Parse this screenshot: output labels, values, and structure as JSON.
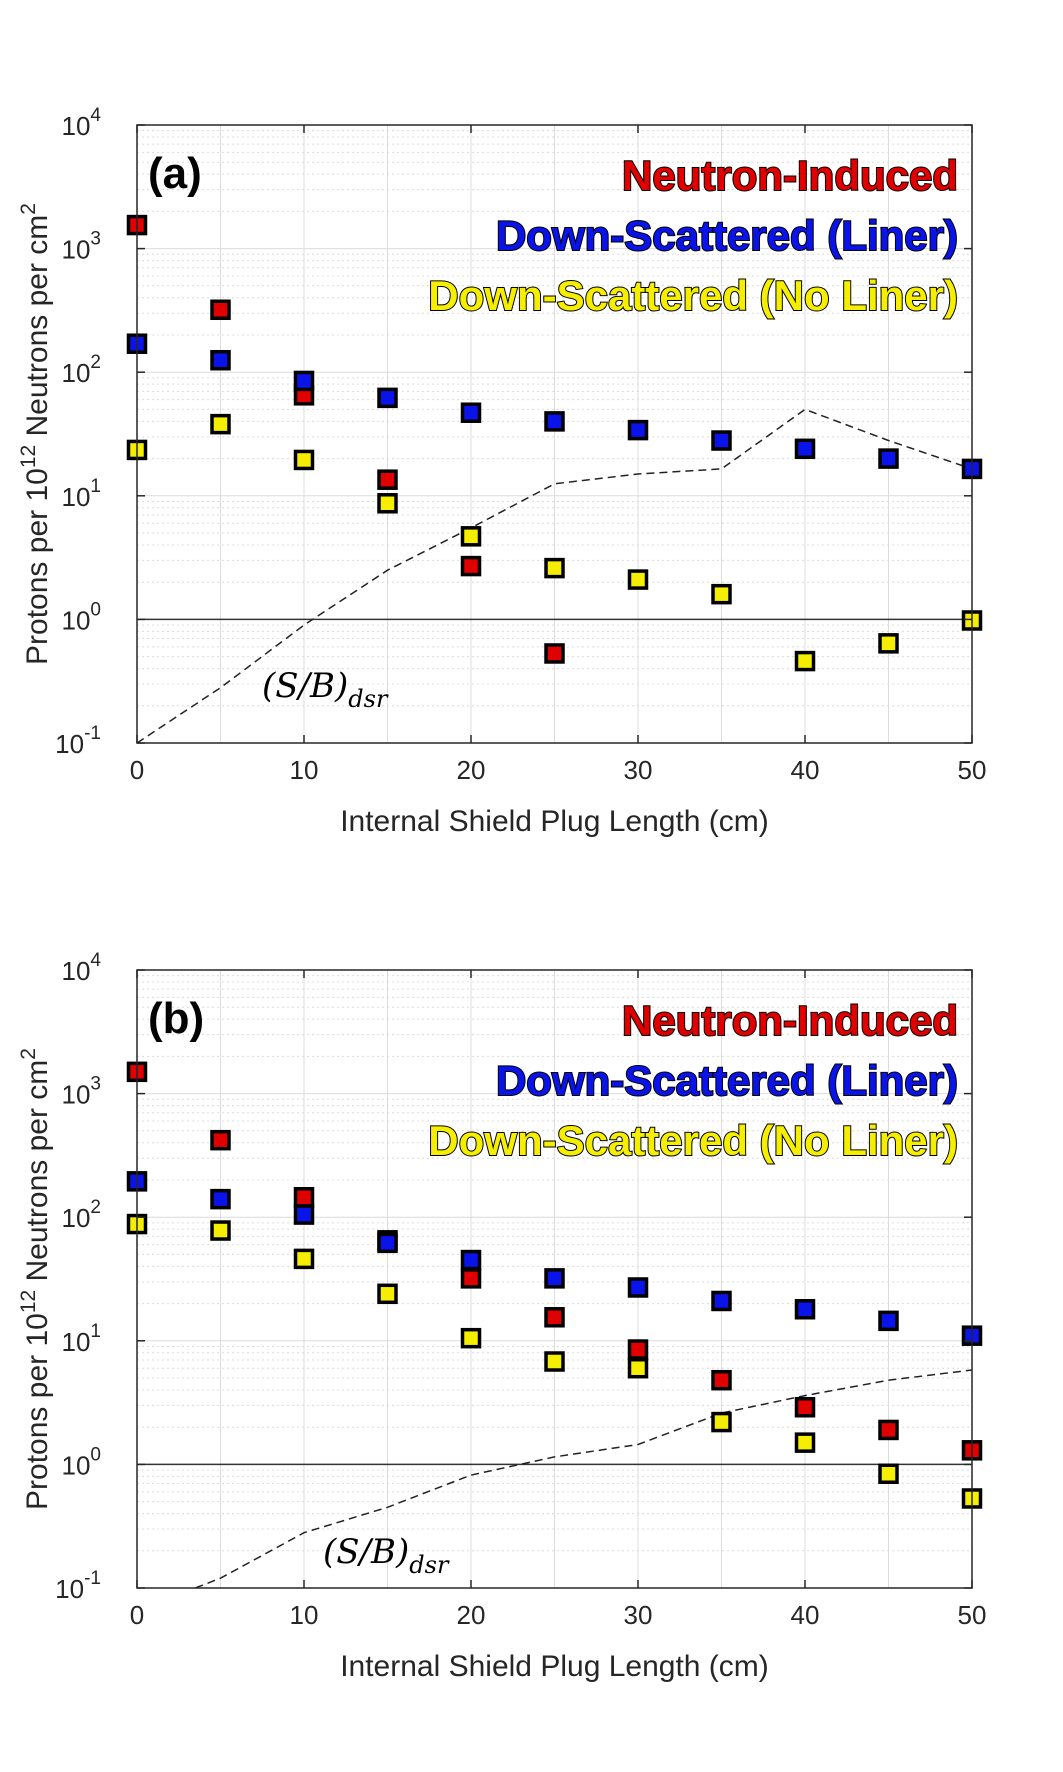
{
  "colors": {
    "neutron_induced": "#e00000",
    "down_scattered_liner": "#0a14e8",
    "down_scattered_no_liner": "#f5ee00",
    "marker_edge": "#000000",
    "grid": "#dcdcdc",
    "axis": "#262626"
  },
  "chart_data": [
    {
      "type": "scatter",
      "panel_label": "(a)",
      "xlabel": "Internal Shield Plug Length (cm)",
      "ylabel": "Protons per 10^12 Neutrons per cm^2",
      "ylabel_parts": {
        "pre": "Protons per 10",
        "exp": "12",
        "mid": " Neutrons per cm",
        "exp2": "2"
      },
      "xlim": [
        0,
        50
      ],
      "ylim": [
        0.1,
        10000
      ],
      "yscale": "log",
      "grid": "on",
      "legend_placement": "top-right",
      "x_ticks": [
        "0",
        "10",
        "20",
        "30",
        "40",
        "50"
      ],
      "y_ticks": [
        {
          "base": "10",
          "exp": "-1"
        },
        {
          "base": "10",
          "exp": "0"
        },
        {
          "base": "10",
          "exp": "1"
        },
        {
          "base": "10",
          "exp": "2"
        },
        {
          "base": "10",
          "exp": "3"
        },
        {
          "base": "10",
          "exp": "4"
        }
      ],
      "series": [
        {
          "name": "Neutron-Induced",
          "x": [
            0,
            5,
            10,
            15,
            20,
            25
          ],
          "values": [
            1550,
            320,
            65,
            13.5,
            2.7,
            0.53
          ]
        },
        {
          "name": "Down-Scattered (Liner)",
          "x": [
            0,
            5,
            10,
            15,
            20,
            25,
            30,
            35,
            40,
            45,
            50
          ],
          "values": [
            170,
            125,
            85,
            62,
            47,
            40,
            34,
            28,
            24,
            20,
            16.5
          ]
        },
        {
          "name": "Down-Scattered (No Liner)",
          "x": [
            0,
            5,
            10,
            15,
            20,
            25,
            30,
            35,
            40,
            45,
            50
          ],
          "values": [
            23.5,
            38,
            19.5,
            8.7,
            4.7,
            2.6,
            2.1,
            1.6,
            0.46,
            0.64,
            0.98
          ]
        }
      ],
      "reference_line_y": 1,
      "dsr_curve": {
        "x": [
          0,
          5,
          10,
          15,
          20,
          25,
          30,
          35,
          40,
          45,
          50
        ],
        "values": [
          0.1,
          0.28,
          0.9,
          2.5,
          5.5,
          12.5,
          15,
          16.5,
          50,
          28,
          16.5
        ]
      },
      "dsr_label": "(S/B)_dsr"
    },
    {
      "type": "scatter",
      "panel_label": "(b)",
      "xlabel": "Internal Shield Plug Length (cm)",
      "ylabel": "Protons per 10^12 Neutrons per cm^2",
      "ylabel_parts": {
        "pre": "Protons per 10",
        "exp": "12",
        "mid": " Neutrons per cm",
        "exp2": "2"
      },
      "xlim": [
        0,
        50
      ],
      "ylim": [
        0.1,
        10000
      ],
      "yscale": "log",
      "grid": "on",
      "legend_placement": "top-right",
      "x_ticks": [
        "0",
        "10",
        "20",
        "30",
        "40",
        "50"
      ],
      "y_ticks": [
        {
          "base": "10",
          "exp": "-1"
        },
        {
          "base": "10",
          "exp": "0"
        },
        {
          "base": "10",
          "exp": "1"
        },
        {
          "base": "10",
          "exp": "2"
        },
        {
          "base": "10",
          "exp": "3"
        },
        {
          "base": "10",
          "exp": "4"
        }
      ],
      "series": [
        {
          "name": "Neutron-Induced",
          "x": [
            0,
            5,
            10,
            15,
            20,
            25,
            30,
            35,
            40,
            45,
            50
          ],
          "values": [
            1500,
            420,
            145,
            65,
            32,
            15.5,
            8.5,
            4.8,
            2.9,
            1.9,
            1.3
          ]
        },
        {
          "name": "Down-Scattered (Liner)",
          "x": [
            0,
            5,
            10,
            15,
            20,
            25,
            30,
            35,
            40,
            45,
            50
          ],
          "values": [
            195,
            140,
            105,
            62,
            45,
            32,
            27,
            21,
            18,
            14.5,
            11
          ]
        },
        {
          "name": "Down-Scattered (No Liner)",
          "x": [
            0,
            5,
            10,
            15,
            20,
            25,
            30,
            35,
            40,
            45,
            50
          ],
          "values": [
            88,
            78,
            46,
            24,
            10.5,
            6.8,
            6,
            2.2,
            1.5,
            0.84,
            0.53
          ]
        }
      ],
      "reference_line_y": 1,
      "dsr_curve": {
        "x": [
          3.5,
          5,
          10,
          15,
          20,
          25,
          30,
          35,
          40,
          45,
          50
        ],
        "values": [
          0.1,
          0.12,
          0.28,
          0.45,
          0.82,
          1.15,
          1.45,
          2.6,
          3.6,
          4.8,
          5.8
        ]
      },
      "dsr_label": "(S/B)_dsr"
    }
  ]
}
